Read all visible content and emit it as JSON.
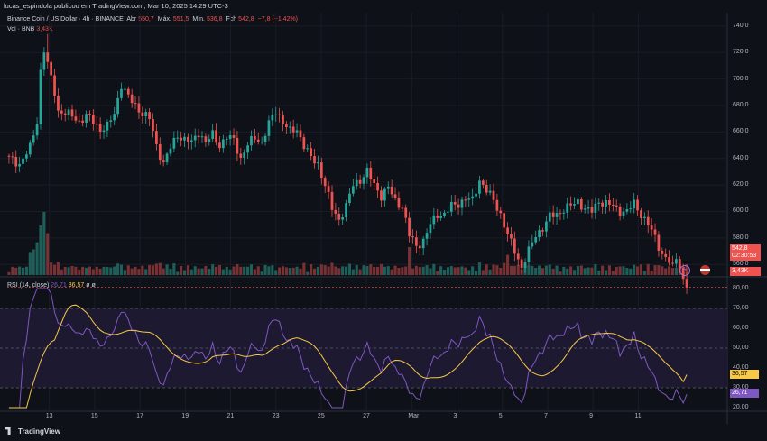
{
  "header": {
    "publisher": "lucas_espindola publicou em TradingView.com, Mar 10, 2025 14:29 UTC-3"
  },
  "legend": {
    "symbol": "Binance Coin / US Dollar · 4h · BINANCE",
    "open_label": "Abr",
    "open_value": "550,7",
    "high_label": "Máx.",
    "high_value": "551,5",
    "low_label": "Mín.",
    "low_value": "536,8",
    "close_label": "Fch",
    "close_value": "542,8",
    "change": "−7,8 (−1,42%)",
    "vol_label": "Vol · BNB",
    "vol_value": "3,43K"
  },
  "rsi_legend": {
    "name": "RSI (14, close)",
    "rsi_value": "26,71",
    "ma_value": "36,57",
    "extra": "ø ø"
  },
  "price_badge": {
    "price": "542,8",
    "countdown": "02:30:53"
  },
  "vol_badge": "3,43K",
  "rsi_badges": {
    "ma": "36,57",
    "rsi": "26,71"
  },
  "price_axis": [
    "740,0",
    "720,0",
    "700,0",
    "680,0",
    "660,0",
    "640,0",
    "620,0",
    "600,0",
    "580,0",
    "560,0"
  ],
  "rsi_axis": [
    "80,00",
    "70,00",
    "60,00",
    "50,00",
    "40,00",
    "30,00",
    "20,00"
  ],
  "time_axis": [
    "13",
    "15",
    "17",
    "19",
    "21",
    "23",
    "25",
    "27",
    "Mar",
    "3",
    "5",
    "7",
    "9",
    "11"
  ],
  "footer": {
    "brand": "TradingView"
  },
  "colors": {
    "up": "#26a69a",
    "down": "#ef5350",
    "rsi": "#7e57c2",
    "ma": "#f7c948",
    "bg": "#0f1118"
  },
  "chart_data": [
    {
      "type": "candlestick",
      "title": "Binance Coin / US Dollar · 4h · BINANCE",
      "y_range": [
        552,
        746
      ],
      "y_ticks": [
        740,
        720,
        700,
        680,
        660,
        640,
        620,
        600,
        580,
        560
      ],
      "x_ticks": [
        "13",
        "15",
        "17",
        "19",
        "21",
        "23",
        "25",
        "27",
        "Mar",
        "3",
        "5",
        "7",
        "9",
        "11"
      ],
      "close_anchors": [
        [
          0,
          640
        ],
        [
          3,
          636
        ],
        [
          6,
          648
        ],
        [
          8,
          668
        ],
        [
          9,
          706
        ],
        [
          10,
          722
        ],
        [
          12,
          700
        ],
        [
          13,
          690
        ],
        [
          14,
          676
        ],
        [
          16,
          674
        ],
        [
          18,
          672
        ],
        [
          20,
          668
        ],
        [
          22,
          672
        ],
        [
          24,
          668
        ],
        [
          26,
          662
        ],
        [
          28,
          664
        ],
        [
          30,
          674
        ],
        [
          32,
          696
        ],
        [
          34,
          686
        ],
        [
          36,
          680
        ],
        [
          38,
          674
        ],
        [
          40,
          670
        ],
        [
          42,
          650
        ],
        [
          44,
          636
        ],
        [
          46,
          648
        ],
        [
          48,
          658
        ],
        [
          50,
          654
        ],
        [
          52,
          652
        ],
        [
          54,
          660
        ],
        [
          56,
          652
        ],
        [
          58,
          658
        ],
        [
          60,
          650
        ],
        [
          62,
          656
        ],
        [
          64,
          654
        ],
        [
          66,
          640
        ],
        [
          68,
          650
        ],
        [
          70,
          656
        ],
        [
          72,
          652
        ],
        [
          74,
          666
        ],
        [
          76,
          676
        ],
        [
          78,
          668
        ],
        [
          80,
          660
        ],
        [
          82,
          662
        ],
        [
          84,
          650
        ],
        [
          86,
          640
        ],
        [
          88,
          636
        ],
        [
          90,
          620
        ],
        [
          92,
          602
        ],
        [
          94,
          594
        ],
        [
          96,
          604
        ],
        [
          98,
          620
        ],
        [
          100,
          624
        ],
        [
          102,
          630
        ],
        [
          104,
          620
        ],
        [
          106,
          612
        ],
        [
          108,
          618
        ],
        [
          110,
          608
        ],
        [
          112,
          604
        ],
        [
          114,
          582
        ],
        [
          116,
          574
        ],
        [
          118,
          578
        ],
        [
          120,
          590
        ],
        [
          122,
          598
        ],
        [
          124,
          598
        ],
        [
          126,
          604
        ],
        [
          128,
          606
        ],
        [
          130,
          610
        ],
        [
          132,
          608
        ],
        [
          134,
          624
        ],
        [
          136,
          616
        ],
        [
          138,
          608
        ],
        [
          140,
          598
        ],
        [
          142,
          582
        ],
        [
          144,
          570
        ],
        [
          146,
          558
        ],
        [
          148,
          570
        ],
        [
          150,
          582
        ],
        [
          152,
          588
        ],
        [
          154,
          596
        ],
        [
          156,
          598
        ],
        [
          158,
          602
        ],
        [
          160,
          604
        ],
        [
          162,
          608
        ],
        [
          164,
          602
        ],
        [
          166,
          600
        ],
        [
          168,
          608
        ],
        [
          170,
          606
        ],
        [
          172,
          604
        ],
        [
          174,
          600
        ],
        [
          176,
          600
        ],
        [
          178,
          606
        ],
        [
          180,
          598
        ],
        [
          182,
          590
        ],
        [
          184,
          580
        ],
        [
          186,
          568
        ],
        [
          188,
          562
        ],
        [
          189,
          557
        ],
        [
          190,
          565
        ],
        [
          191,
          560
        ],
        [
          192,
          548
        ],
        [
          193,
          542.8
        ]
      ],
      "candle_count": 194
    },
    {
      "type": "bar",
      "title": "Vol · BNB",
      "last_value": "3,43K"
    },
    {
      "type": "line",
      "title": "RSI (14, close)",
      "y_range": [
        20,
        80
      ],
      "y_ticks": [
        80,
        70,
        60,
        50,
        40,
        30,
        20
      ],
      "bands": [
        30,
        50,
        70
      ],
      "series": [
        {
          "name": "RSI",
          "last": 26.71
        },
        {
          "name": "MA",
          "last": 36.57
        }
      ]
    }
  ]
}
